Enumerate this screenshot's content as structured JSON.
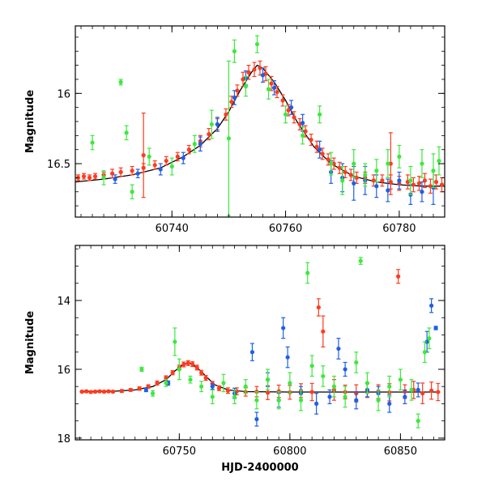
{
  "chart_data": [
    {
      "type": "scatter",
      "panel": "top",
      "title": "",
      "xlabel": "",
      "ylabel": "Magnitude",
      "xlim": [
        60723,
        60788
      ],
      "ylim": [
        16.88,
        15.52
      ],
      "y_inverted": true,
      "x_ticks": [
        60740,
        60760,
        60780
      ],
      "y_ticks": [
        16,
        16.5
      ],
      "x_tick_labels": [
        "60740",
        "60760",
        "60780"
      ],
      "y_tick_labels": [
        "16",
        "16.5"
      ],
      "grid": false,
      "legend": "none",
      "model_curve": {
        "color": "#000000",
        "x": [
          60723,
          60728,
          60733,
          60738,
          60742,
          60745,
          60748,
          60750,
          60752,
          60754,
          60755,
          60756,
          60758,
          60760,
          60762,
          60765,
          60768,
          60772,
          60776,
          60780,
          60784,
          60788
        ],
        "y": [
          16.63,
          16.61,
          16.58,
          16.53,
          16.45,
          16.37,
          16.25,
          16.13,
          15.98,
          15.85,
          15.8,
          15.82,
          15.92,
          16.05,
          16.2,
          16.38,
          16.5,
          16.59,
          16.63,
          16.65,
          16.66,
          16.66
        ]
      },
      "series": [
        {
          "name": "",
          "color": "#ff3b1f",
          "x": [
            60723.5,
            60724.5,
            60725.5,
            60726.5,
            60728,
            60729.5,
            60731,
            60733,
            60735,
            60737,
            60739,
            60741,
            60743,
            60745,
            60746.5,
            60748,
            60749.5,
            60750.5,
            60751.5,
            60752.5,
            60753.5,
            60754.5,
            60755.5,
            60756.5,
            60757.5,
            60758.5,
            60759.5,
            60760.5,
            60761.5,
            60762.5,
            60763.5,
            60764.5,
            60765.5,
            60766.5,
            60767.5,
            60768.5,
            60769.5,
            60770.5,
            60771.5,
            60772.5,
            60774,
            60775.5,
            60777,
            60778.5,
            60780,
            60781.5,
            60782.5,
            60783.5,
            60784.5,
            60785.5,
            60786.5,
            60787.5,
            60735,
            60778.5
          ],
          "y": [
            16.6,
            16.59,
            16.6,
            16.59,
            16.58,
            16.57,
            16.56,
            16.55,
            16.53,
            16.51,
            16.48,
            16.45,
            16.4,
            16.34,
            16.29,
            16.22,
            16.15,
            16.06,
            15.98,
            15.9,
            15.85,
            15.83,
            15.82,
            15.86,
            15.93,
            15.99,
            16.05,
            16.12,
            16.17,
            16.22,
            16.27,
            16.33,
            16.38,
            16.43,
            16.47,
            16.5,
            16.53,
            16.56,
            16.58,
            16.6,
            16.6,
            16.62,
            16.62,
            16.63,
            16.64,
            16.63,
            16.65,
            16.64,
            16.62,
            16.66,
            16.63,
            16.65,
            16.44,
            16.5
          ],
          "yerr": [
            0.02,
            0.02,
            0.02,
            0.02,
            0.02,
            0.03,
            0.03,
            0.03,
            0.03,
            0.03,
            0.03,
            0.03,
            0.03,
            0.04,
            0.04,
            0.04,
            0.04,
            0.04,
            0.04,
            0.05,
            0.05,
            0.05,
            0.05,
            0.05,
            0.05,
            0.04,
            0.04,
            0.04,
            0.04,
            0.04,
            0.04,
            0.04,
            0.04,
            0.04,
            0.04,
            0.04,
            0.04,
            0.04,
            0.04,
            0.04,
            0.04,
            0.04,
            0.04,
            0.05,
            0.05,
            0.05,
            0.05,
            0.05,
            0.05,
            0.05,
            0.05,
            0.05,
            0.3,
            0.22
          ]
        },
        {
          "name": "",
          "color": "#1f5fe6",
          "x": [
            60730,
            60734,
            60738,
            60742,
            60745,
            60748,
            60751,
            60753,
            60756,
            60758,
            60761,
            60763,
            60766,
            60768,
            60770,
            60772,
            60774,
            60776,
            60778,
            60780,
            60782,
            60784,
            60786
          ],
          "y": [
            16.61,
            16.57,
            16.54,
            16.46,
            16.36,
            16.22,
            16.03,
            15.89,
            15.87,
            15.96,
            16.1,
            16.21,
            16.4,
            16.56,
            16.6,
            16.64,
            16.62,
            16.66,
            16.69,
            16.62,
            16.72,
            16.7,
            16.67
          ],
          "yerr": [
            0.03,
            0.03,
            0.04,
            0.04,
            0.05,
            0.05,
            0.05,
            0.05,
            0.05,
            0.05,
            0.05,
            0.06,
            0.06,
            0.08,
            0.1,
            0.12,
            0.1,
            0.08,
            0.08,
            0.06,
            0.07,
            0.07,
            0.12
          ]
        },
        {
          "name": "",
          "color": "#3ee83e",
          "x": [
            60726,
            60728,
            60731,
            60732,
            60733,
            60736,
            60740,
            60744,
            60747,
            60750,
            60751,
            60753,
            60755,
            60757,
            60760,
            60763,
            60766,
            60768,
            60770,
            60772,
            60774,
            60776,
            60778,
            60780,
            60782,
            60784,
            60786,
            60787
          ],
          "y": [
            16.35,
            16.6,
            15.92,
            16.28,
            16.7,
            16.45,
            16.52,
            16.36,
            16.22,
            16.32,
            15.7,
            15.95,
            15.65,
            15.97,
            16.15,
            16.3,
            16.15,
            16.5,
            16.62,
            16.5,
            16.58,
            16.55,
            16.5,
            16.45,
            16.62,
            16.5,
            16.55,
            16.48
          ],
          "yerr": [
            0.05,
            0.05,
            0.02,
            0.05,
            0.05,
            0.06,
            0.06,
            0.06,
            0.1,
            0.55,
            0.08,
            0.07,
            0.06,
            0.07,
            0.06,
            0.06,
            0.06,
            0.08,
            0.1,
            0.1,
            0.08,
            0.08,
            0.1,
            0.08,
            0.1,
            0.1,
            0.12,
            0.1
          ]
        }
      ]
    },
    {
      "type": "scatter",
      "panel": "bottom",
      "title": "",
      "xlabel": "HJD-2400000",
      "ylabel": "Magnitude",
      "xlim": [
        60703,
        60870
      ],
      "ylim": [
        18.05,
        12.4
      ],
      "y_inverted": true,
      "x_ticks": [
        60750,
        60800,
        60850
      ],
      "y_ticks": [
        14,
        16,
        18
      ],
      "x_tick_labels": [
        "60750",
        "60800",
        "60850"
      ],
      "y_tick_labels": [
        "14",
        "16",
        "18"
      ],
      "grid": false,
      "legend": "none",
      "model_curve": {
        "color": "#000000",
        "x": [
          60705,
          60720,
          60730,
          60738,
          60744,
          60748,
          60752,
          60755,
          60758,
          60762,
          60766,
          60772,
          60780,
          60800,
          60830,
          60868
        ],
        "y": [
          16.65,
          16.64,
          16.6,
          16.5,
          16.3,
          16.05,
          15.85,
          15.82,
          15.95,
          16.2,
          16.45,
          16.6,
          16.65,
          16.66,
          16.66,
          16.66
        ],
        "color_label": ""
      },
      "series": [
        {
          "name": "",
          "color": "#ff3b1f",
          "x": [
            60706,
            60708,
            60710,
            60712,
            60714,
            60716,
            60718,
            60720,
            60724,
            60728,
            60732,
            60736,
            60740,
            60744,
            60747,
            60750,
            60752,
            60754,
            60756,
            60758,
            60760,
            60762,
            60765,
            60768,
            60772,
            60776,
            60780,
            60785,
            60790,
            60795,
            60800,
            60805,
            60810,
            60813,
            60815,
            60820,
            60825,
            60830,
            60835,
            60840,
            60845,
            60849,
            60852,
            60856,
            60860,
            60864,
            60867
          ],
          "y": [
            16.65,
            16.64,
            16.66,
            16.65,
            16.64,
            16.65,
            16.64,
            16.65,
            16.63,
            16.6,
            16.56,
            16.5,
            16.4,
            16.25,
            16.1,
            15.95,
            15.86,
            15.82,
            15.85,
            15.95,
            16.1,
            16.25,
            16.42,
            16.55,
            16.62,
            16.64,
            16.66,
            16.65,
            16.68,
            16.64,
            16.67,
            16.62,
            16.66,
            14.2,
            14.9,
            16.6,
            16.66,
            16.7,
            16.62,
            16.65,
            16.67,
            13.3,
            16.65,
            16.6,
            16.7,
            16.62,
            16.66
          ],
          "yerr": [
            0.03,
            0.03,
            0.03,
            0.03,
            0.03,
            0.03,
            0.03,
            0.03,
            0.04,
            0.04,
            0.05,
            0.05,
            0.06,
            0.06,
            0.06,
            0.07,
            0.07,
            0.07,
            0.07,
            0.07,
            0.07,
            0.07,
            0.07,
            0.07,
            0.08,
            0.1,
            0.12,
            0.15,
            0.2,
            0.18,
            0.2,
            0.2,
            0.25,
            0.25,
            0.45,
            0.3,
            0.2,
            0.25,
            0.2,
            0.2,
            0.25,
            0.2,
            0.2,
            0.25,
            0.3,
            0.25,
            0.25
          ]
        },
        {
          "name": "",
          "color": "#1f5fe6",
          "x": [
            60735,
            60745,
            60765,
            60775,
            60783,
            60785,
            60790,
            60795,
            60797,
            60799,
            60805,
            60812,
            60818,
            60822,
            60825,
            60830,
            60835,
            60840,
            60845,
            60852,
            60858,
            60862,
            60864,
            60866
          ],
          "y": [
            16.6,
            16.4,
            16.5,
            16.7,
            15.5,
            17.45,
            16.3,
            16.9,
            14.8,
            15.65,
            16.7,
            17.0,
            16.8,
            15.4,
            16.0,
            16.9,
            16.6,
            16.7,
            17.0,
            16.8,
            16.6,
            15.2,
            14.15,
            14.8
          ],
          "yerr": [
            0.05,
            0.06,
            0.08,
            0.15,
            0.25,
            0.2,
            0.2,
            0.2,
            0.3,
            0.3,
            0.2,
            0.3,
            0.2,
            0.3,
            0.2,
            0.25,
            0.2,
            0.2,
            0.25,
            0.2,
            0.2,
            0.3,
            0.2,
            0.05
          ]
        },
        {
          "name": "",
          "color": "#3ee83e",
          "x": [
            60733,
            60738,
            60744,
            60748,
            60750,
            60755,
            60760,
            60765,
            60770,
            60775,
            60780,
            60785,
            60790,
            60795,
            60800,
            60805,
            60808,
            60810,
            60815,
            60820,
            60825,
            60830,
            60832,
            60835,
            60840,
            60845,
            60850,
            60855,
            60858,
            60861,
            60863
          ],
          "y": [
            16.0,
            16.7,
            16.4,
            15.2,
            16.0,
            16.3,
            16.5,
            16.8,
            16.4,
            16.8,
            16.5,
            16.9,
            16.3,
            16.9,
            16.4,
            16.9,
            13.2,
            15.9,
            16.2,
            16.5,
            16.8,
            15.8,
            12.85,
            16.4,
            16.9,
            16.5,
            16.3,
            16.6,
            17.5,
            15.5,
            15.1
          ],
          "yerr": [
            0.06,
            0.08,
            0.1,
            0.4,
            0.3,
            0.1,
            0.15,
            0.2,
            0.25,
            0.2,
            0.2,
            0.25,
            0.3,
            0.25,
            0.3,
            0.3,
            0.3,
            0.3,
            0.3,
            0.3,
            0.3,
            0.3,
            0.1,
            0.3,
            0.3,
            0.3,
            0.3,
            0.3,
            0.2,
            0.3,
            0.3
          ]
        }
      ]
    }
  ]
}
